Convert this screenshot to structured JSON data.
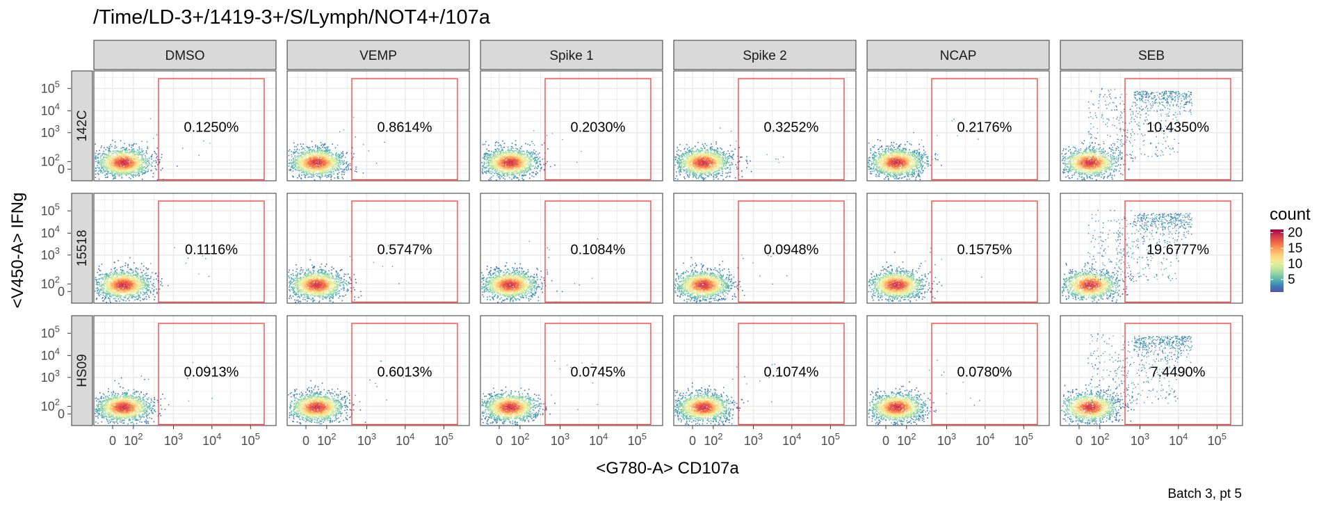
{
  "chart_data": {
    "type": "heatmap",
    "title": "/Time/LD-3+/1419-3+/S/Lymph/NOT4+/107a",
    "xlabel": "<G780-A> CD107a",
    "ylabel": "<V450-A> IFNg",
    "caption": "Batch 3, pt 5",
    "column_facets": [
      "DMSO",
      "VEMP",
      "Spike 1",
      "Spike 2",
      "NCAP",
      "SEB"
    ],
    "row_facets": [
      "142C",
      "15518",
      "HS09"
    ],
    "x_ticks": [
      {
        "label": "0",
        "sup": ""
      },
      {
        "label": "10",
        "sup": "2"
      },
      {
        "label": "10",
        "sup": "3"
      },
      {
        "label": "10",
        "sup": "4"
      },
      {
        "label": "10",
        "sup": "5"
      }
    ],
    "y_ticks": [
      {
        "label": "0",
        "sup": ""
      },
      {
        "label": "10",
        "sup": "2"
      },
      {
        "label": "10",
        "sup": "3"
      },
      {
        "label": "10",
        "sup": "4"
      },
      {
        "label": "10",
        "sup": "5"
      }
    ],
    "gate_percentages": [
      [
        "0.1250%",
        "0.8614%",
        "0.2030%",
        "0.3252%",
        "0.2176%",
        "10.4350%"
      ],
      [
        "0.1116%",
        "0.5747%",
        "0.1084%",
        "0.0948%",
        "0.1575%",
        "19.6777%"
      ],
      [
        "0.0913%",
        "0.6013%",
        "0.0745%",
        "0.1074%",
        "0.0780%",
        "7.4490%"
      ]
    ],
    "legend": {
      "title": "count",
      "breaks": [
        "5",
        "10",
        "15",
        "20"
      ],
      "range": [
        1,
        21
      ],
      "palette": "Spectral (reversed)",
      "position": "right"
    },
    "grid": true
  }
}
